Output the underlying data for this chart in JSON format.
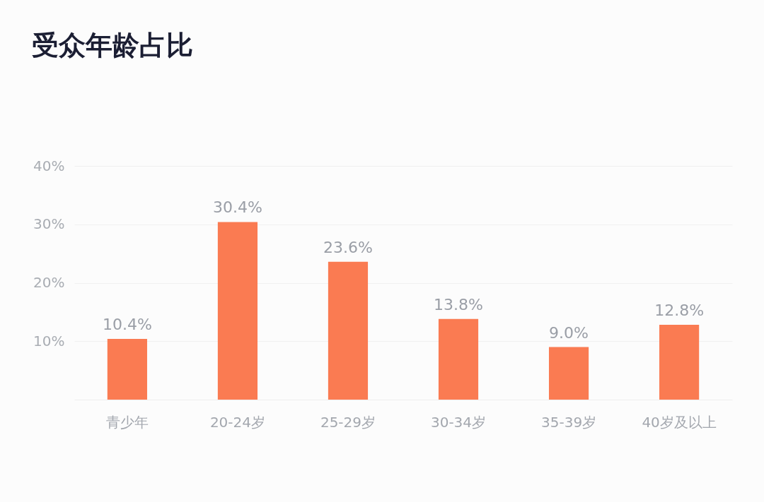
{
  "chart_data": {
    "type": "bar",
    "title": "受众年龄占比",
    "categories": [
      "青少年",
      "20-24岁",
      "25-29岁",
      "30-34岁",
      "35-39岁",
      "40岁及以上"
    ],
    "values": [
      10.4,
      30.4,
      23.6,
      13.8,
      9.0,
      12.8
    ],
    "value_labels": [
      "10.4%",
      "30.4%",
      "23.6%",
      "13.8%",
      "9.0%",
      "12.8%"
    ],
    "color": "#fa7b52",
    "ylim": [
      0,
      40
    ],
    "yticks": [
      {
        "value": 10,
        "label": "10%"
      },
      {
        "value": 20,
        "label": "20%"
      },
      {
        "value": 30,
        "label": "30%"
      },
      {
        "value": 40,
        "label": "40%"
      }
    ],
    "grid": "y"
  }
}
